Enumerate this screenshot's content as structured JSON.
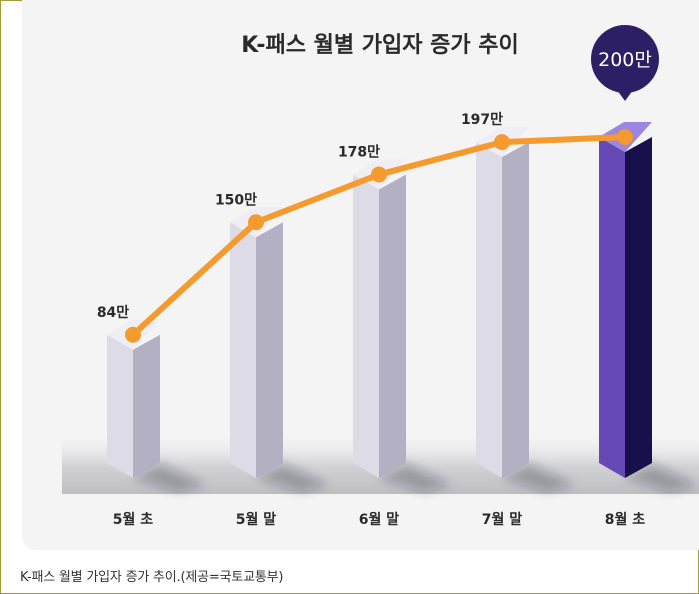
{
  "chart_data": {
    "type": "bar",
    "title": "K-패스 월별 가입자 증가 추이",
    "categories": [
      "5월 초",
      "5월 말",
      "6월 말",
      "7월 말",
      "8월 초"
    ],
    "values": [
      84,
      150,
      178,
      197,
      200
    ],
    "value_labels": [
      "84만",
      "150만",
      "178만",
      "197만",
      "200만"
    ],
    "highlight_index": 4,
    "overlay_line": true,
    "unit": "만",
    "xlabel": "",
    "ylabel": "",
    "ylim": [
      0,
      200
    ],
    "colors": {
      "bar_front": "#dcdbe6",
      "bar_side": "#b3b0c4",
      "bar_top": "#efeef4",
      "highlight_front": "#6549b5",
      "highlight_side": "#17104a",
      "highlight_top": "#9b86e0",
      "line": "#f59a2f",
      "bubble": "#2d1f66"
    }
  },
  "caption": "K-패스 월별 가입자 증가 추이.(제공=국토교통부)"
}
